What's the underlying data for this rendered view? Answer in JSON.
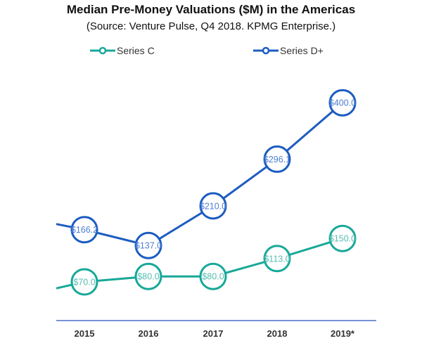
{
  "chart_data": {
    "type": "line",
    "title": "Median Pre-Money Valuations ($M) in the Americas",
    "subtitle": "(Source: Venture Pulse, Q4 2018. KPMG Enterprise.)",
    "categories": [
      "2015",
      "2016",
      "2017",
      "2018",
      "2019*"
    ],
    "series": [
      {
        "name": "Series C",
        "values": [
          70.0,
          80.0,
          80.0,
          113.0,
          150.0
        ],
        "labels": [
          "$70.0",
          "$80.0",
          "$80.0",
          "$113.0",
          "$150.0"
        ],
        "color": "#17a898",
        "label_color": "#56bdb2"
      },
      {
        "name": "Series D+",
        "values": [
          166.2,
          137.0,
          210.0,
          296.1,
          400.0
        ],
        "labels": [
          "$166.2",
          "$137.0",
          "$210.0",
          "$296.1",
          "$400.0"
        ],
        "color": "#1c5cc0",
        "label_color": "#4d7fd4"
      }
    ],
    "ylim": [
      0,
      420
    ],
    "grid": false,
    "legend": "top",
    "axis_color": "#4a6fc8"
  }
}
